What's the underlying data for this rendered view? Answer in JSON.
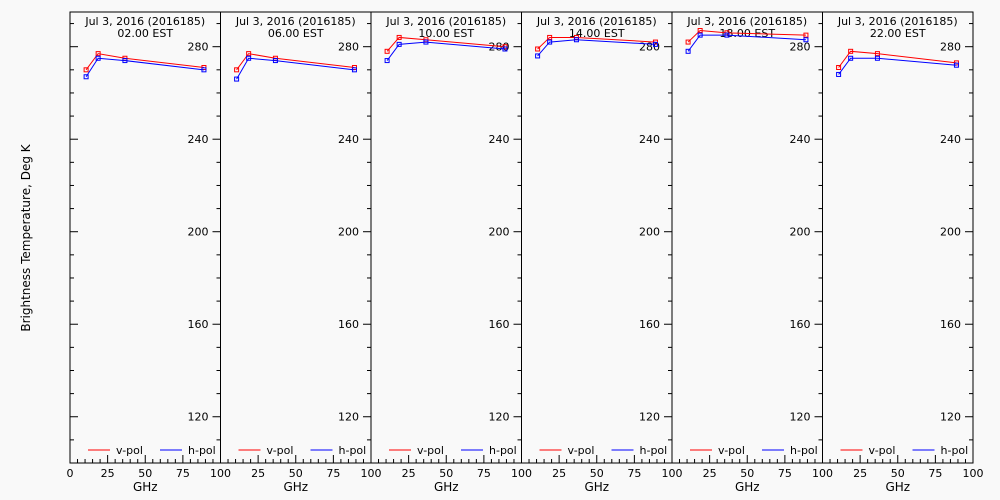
{
  "chart_data": {
    "type": "line",
    "ylabel": "Brightness Temperature, Deg K",
    "xlabel": "GHz",
    "ylim": [
      100,
      295
    ],
    "xlim": [
      0,
      100
    ],
    "y_ticks": [
      120,
      160,
      200,
      240,
      280
    ],
    "y_tick_labels": [
      "120",
      "160",
      "200",
      "240",
      "280"
    ],
    "x_ticks": [
      0,
      25,
      50,
      75,
      100
    ],
    "x_tick_labels_first": [
      "0",
      "25",
      "50",
      "75",
      "100"
    ],
    "x_tick_labels_rest": [
      "25",
      "50",
      "75",
      "100"
    ],
    "legend": {
      "placement": "bottom",
      "entries": [
        "v-pol",
        "h-pol"
      ]
    },
    "colors": {
      "v-pol": "#ff0000",
      "h-pol": "#0000ff"
    },
    "x": [
      10.7,
      18.7,
      36.5,
      89.0
    ],
    "panels": [
      {
        "date": "Jul  3, 2016 (2016185)",
        "time": "02.00 EST",
        "series": [
          {
            "name": "v-pol",
            "values": [
              270,
              277,
              275,
              271
            ]
          },
          {
            "name": "h-pol",
            "values": [
              267,
              275,
              274,
              270
            ]
          }
        ]
      },
      {
        "date": "Jul  3, 2016 (2016185)",
        "time": "06.00 EST",
        "series": [
          {
            "name": "v-pol",
            "values": [
              270,
              277,
              275,
              271
            ]
          },
          {
            "name": "h-pol",
            "values": [
              266,
              275,
              274,
              270
            ]
          }
        ]
      },
      {
        "date": "Jul  3, 2016 (2016185)",
        "time": "10.00 EST",
        "series": [
          {
            "name": "v-pol",
            "values": [
              278,
              284,
              283,
              280
            ]
          },
          {
            "name": "h-pol",
            "values": [
              274,
              281,
              282,
              279
            ]
          }
        ]
      },
      {
        "date": "Jul  3, 2016 (2016185)",
        "time": "14.00 EST",
        "series": [
          {
            "name": "v-pol",
            "values": [
              279,
              284,
              284,
              282
            ]
          },
          {
            "name": "h-pol",
            "values": [
              276,
              282,
              283,
              281
            ]
          }
        ]
      },
      {
        "date": "Jul  3, 2016 (2016185)",
        "time": "18.00 EST",
        "series": [
          {
            "name": "v-pol",
            "values": [
              282,
              287,
              286,
              285
            ]
          },
          {
            "name": "h-pol",
            "values": [
              278,
              285,
              285,
              283
            ]
          }
        ]
      },
      {
        "date": "Jul  3, 2016 (2016185)",
        "time": "22.00 EST",
        "series": [
          {
            "name": "v-pol",
            "values": [
              271,
              278,
              277,
              273
            ]
          },
          {
            "name": "h-pol",
            "values": [
              268,
              275,
              275,
              272
            ]
          }
        ]
      }
    ]
  }
}
